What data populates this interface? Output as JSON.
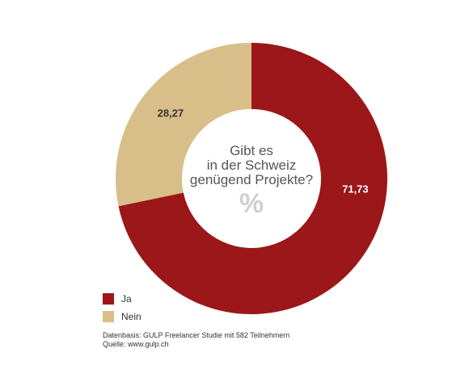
{
  "chart_data": {
    "type": "pie",
    "style": "donut",
    "center_text": [
      "Gibt es",
      "in der Schweiz",
      "genügend Projekte?"
    ],
    "center_unit": "%",
    "slices": [
      {
        "label": "Ja",
        "value": 71.73,
        "display": "71,73",
        "color": "#9b1719",
        "label_color": "#ffffff"
      },
      {
        "label": "Nein",
        "value": 28.27,
        "display": "28,27",
        "color": "#d8bf89",
        "label_color": "#333333"
      }
    ],
    "legend_position": "bottom-left"
  },
  "footnote": {
    "line1": "Datenbasis: GULP Freelancer Studie mit 582 Teilnehmern",
    "line2": "Quelle: www.gulp.ch"
  }
}
